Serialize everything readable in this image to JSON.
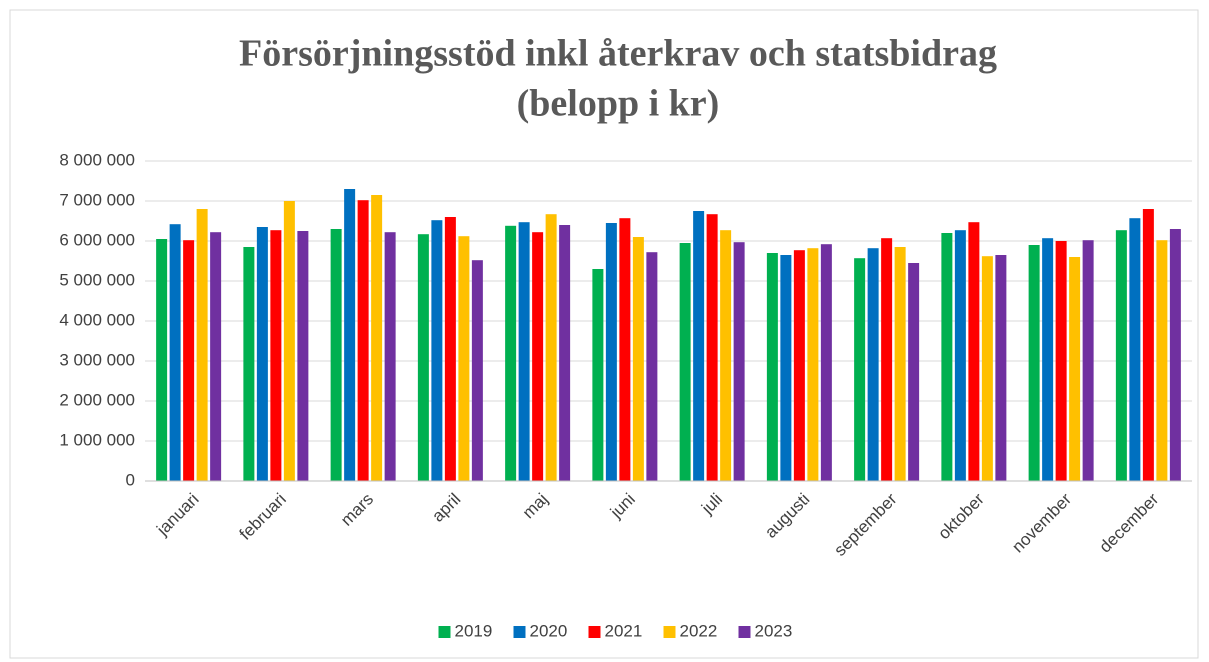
{
  "chart_data": {
    "type": "bar",
    "title": [
      "Försörjningsstöd inkl återkrav och statsbidrag",
      "(belopp i kr)"
    ],
    "categories": [
      "januari",
      "februari",
      "mars",
      "april",
      "maj",
      "juni",
      "juli",
      "augusti",
      "september",
      "oktober",
      "november",
      "december"
    ],
    "series": [
      {
        "name": "2019",
        "color": "#00b050",
        "values": [
          6050000,
          5850000,
          6300000,
          6170000,
          6380000,
          5300000,
          5950000,
          5700000,
          5570000,
          6200000,
          5900000,
          6270000
        ]
      },
      {
        "name": "2020",
        "color": "#0070c0",
        "values": [
          6420000,
          6350000,
          7300000,
          6520000,
          6470000,
          6450000,
          6750000,
          5650000,
          5820000,
          6270000,
          6070000,
          6570000
        ]
      },
      {
        "name": "2021",
        "color": "#ff0000",
        "values": [
          6020000,
          6270000,
          7020000,
          6600000,
          6220000,
          6570000,
          6670000,
          5770000,
          6070000,
          6470000,
          6000000,
          6800000
        ]
      },
      {
        "name": "2022",
        "color": "#ffc000",
        "values": [
          6800000,
          7000000,
          7150000,
          6120000,
          6670000,
          6100000,
          6270000,
          5820000,
          5850000,
          5620000,
          5600000,
          6020000
        ]
      },
      {
        "name": "2023",
        "color": "#7030a0",
        "values": [
          6220000,
          6250000,
          6220000,
          5520000,
          6400000,
          5720000,
          5970000,
          5920000,
          5450000,
          5650000,
          6020000,
          6300000
        ]
      }
    ],
    "ylim": [
      0,
      8000000
    ],
    "yticks": [
      0,
      {
        "value": 1000000,
        "label": "1 000 000"
      },
      {
        "value": 2000000,
        "label": "2 000 000"
      },
      {
        "value": 3000000,
        "label": "3 000 000"
      },
      {
        "value": 4000000,
        "label": "4 000 000"
      },
      {
        "value": 5000000,
        "label": "5 000 000"
      },
      {
        "value": 6000000,
        "label": "6 000 000"
      },
      {
        "value": 7000000,
        "label": "7 000 000"
      },
      {
        "value": 8000000,
        "label": "8 000 000"
      }
    ],
    "grid": true,
    "legend": "bottom"
  }
}
